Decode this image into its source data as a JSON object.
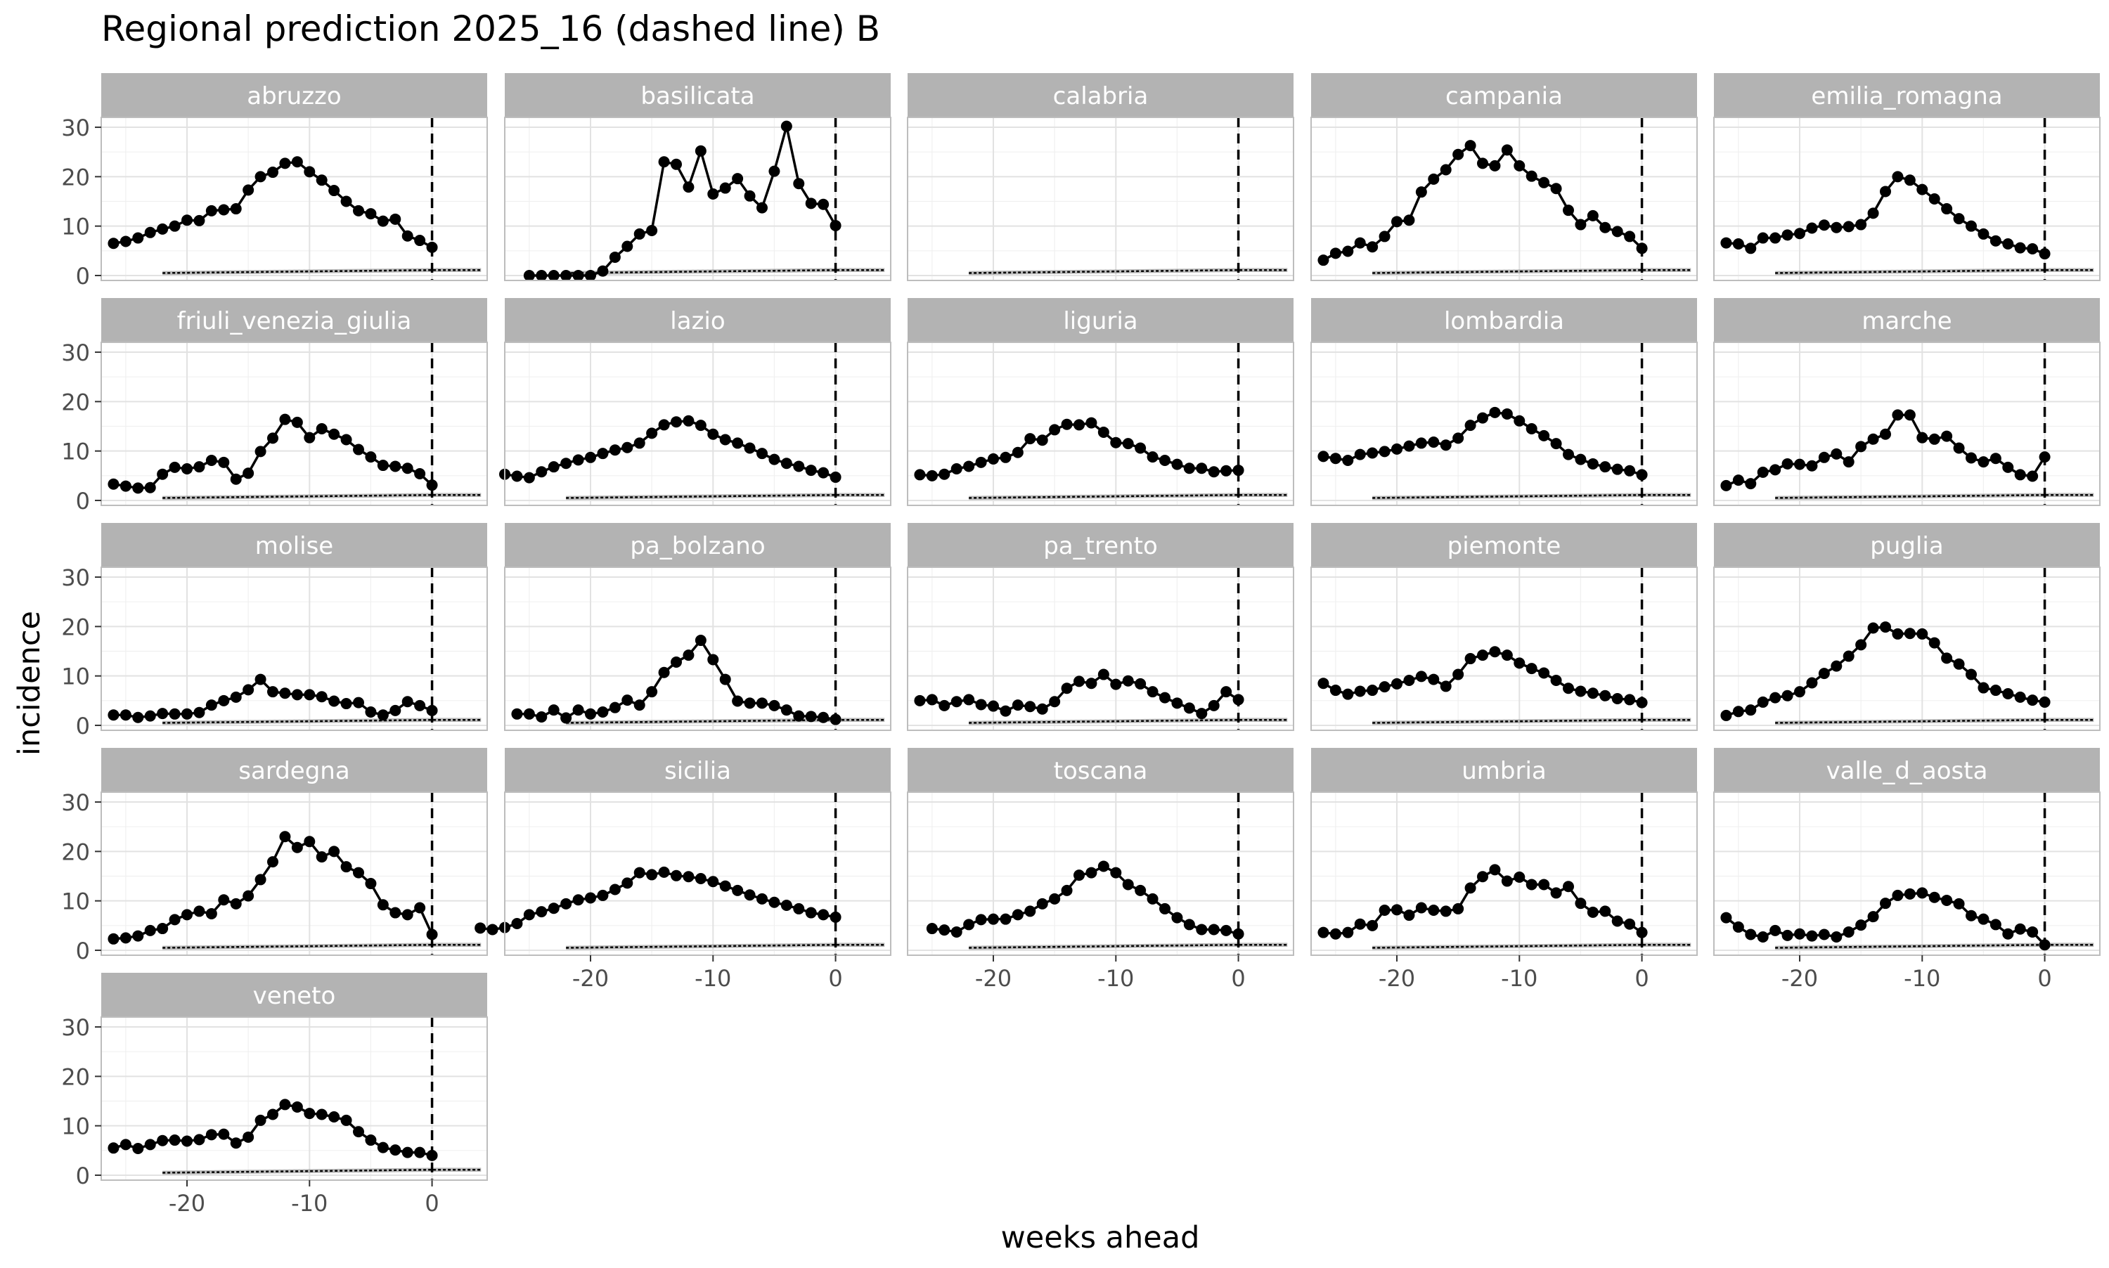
{
  "chart_data": {
    "type": "line",
    "title": "Regional prediction 2025_16 (dashed line) B",
    "xlabel": "weeks ahead",
    "ylabel": "incidence",
    "xlim": [
      -27,
      4.5
    ],
    "ylim": [
      -1,
      32
    ],
    "x_ticks": [
      -20,
      -10,
      0
    ],
    "y_ticks": [
      0,
      10,
      20,
      30
    ],
    "vline_x": 0,
    "grid": true,
    "facets": [
      {
        "name": "abruzzo",
        "observed": [
          6.5,
          6.9,
          7.6,
          8.7,
          9.4,
          10.0,
          11.2,
          11.1,
          13.1,
          13.3,
          13.5,
          17.3,
          20.0,
          20.9,
          22.7,
          23.0,
          21.0,
          19.3,
          17.2,
          15.0,
          13.1,
          12.5,
          11.0,
          11.4,
          8.0,
          7.1,
          5.7
        ]
      },
      {
        "name": "basilicata",
        "observed": [
          0.0,
          0.0,
          0.0,
          0.0,
          0.0,
          0.0,
          0.9,
          3.7,
          5.9,
          8.4,
          9.1,
          23.0,
          22.5,
          17.9,
          25.2,
          16.5,
          17.7,
          19.6,
          16.1,
          13.7,
          21.1,
          30.2,
          18.6,
          14.6,
          14.4,
          10.1
        ]
      },
      {
        "name": "calabria",
        "observed": []
      },
      {
        "name": "campania",
        "observed": [
          3.1,
          4.5,
          4.9,
          6.6,
          5.8,
          7.9,
          10.9,
          11.2,
          16.9,
          19.5,
          21.4,
          24.5,
          26.3,
          22.7,
          22.2,
          25.4,
          22.2,
          20.1,
          18.8,
          17.6,
          13.2,
          10.3,
          12.1,
          9.7,
          8.9,
          7.9,
          5.5
        ]
      },
      {
        "name": "emilia_romagna",
        "observed": [
          6.6,
          6.4,
          5.5,
          7.6,
          7.6,
          8.2,
          8.5,
          9.6,
          10.2,
          9.7,
          9.9,
          10.3,
          12.6,
          17.0,
          20.0,
          19.3,
          17.4,
          15.5,
          13.5,
          11.5,
          10.0,
          8.4,
          7.0,
          6.4,
          5.6,
          5.4,
          4.4
        ]
      },
      {
        "name": "friuli_venezia_giulia",
        "observed": [
          3.3,
          2.9,
          2.5,
          2.6,
          5.3,
          6.7,
          6.4,
          6.8,
          8.1,
          7.7,
          4.3,
          5.5,
          9.9,
          12.6,
          16.4,
          15.8,
          12.7,
          14.5,
          13.4,
          12.3,
          10.3,
          8.8,
          7.1,
          6.9,
          6.5,
          5.4,
          3.1
        ]
      },
      {
        "name": "lazio",
        "observed": [
          5.3,
          4.9,
          4.6,
          5.8,
          6.8,
          7.5,
          8.2,
          8.7,
          9.5,
          10.2,
          10.7,
          11.6,
          13.6,
          15.3,
          15.9,
          16.1,
          15.2,
          13.4,
          12.3,
          11.6,
          10.6,
          9.5,
          8.3,
          7.5,
          6.9,
          6.1,
          5.6,
          4.7
        ]
      },
      {
        "name": "liguria",
        "observed": [
          5.2,
          5.0,
          5.3,
          6.4,
          6.9,
          7.7,
          8.4,
          8.7,
          9.7,
          12.5,
          12.2,
          14.3,
          15.4,
          15.3,
          15.7,
          13.8,
          11.7,
          11.5,
          10.6,
          8.8,
          8.1,
          7.3,
          6.5,
          6.5,
          5.8,
          6.0,
          6.1
        ]
      },
      {
        "name": "lombardia",
        "observed": [
          8.9,
          8.5,
          8.1,
          9.3,
          9.6,
          9.9,
          10.4,
          11.0,
          11.6,
          11.8,
          11.2,
          12.6,
          15.2,
          16.7,
          17.8,
          17.5,
          16.1,
          14.5,
          13.1,
          11.5,
          9.3,
          8.3,
          7.4,
          6.8,
          6.3,
          6.0,
          5.2
        ]
      },
      {
        "name": "marche",
        "observed": [
          3.0,
          4.1,
          3.4,
          5.7,
          6.2,
          7.4,
          7.3,
          7.0,
          8.7,
          9.4,
          7.8,
          10.9,
          12.4,
          13.4,
          17.3,
          17.3,
          12.7,
          12.4,
          13.0,
          10.6,
          8.6,
          7.8,
          8.5,
          6.7,
          5.2,
          4.9,
          8.8
        ]
      },
      {
        "name": "molise",
        "observed": [
          2.1,
          2.1,
          1.6,
          1.9,
          2.4,
          2.3,
          2.3,
          2.6,
          4.1,
          5.0,
          5.7,
          7.2,
          9.3,
          6.8,
          6.5,
          6.2,
          6.2,
          5.8,
          4.9,
          4.4,
          4.6,
          2.7,
          2.1,
          3.0,
          4.8,
          4.0,
          3.0
        ]
      },
      {
        "name": "pa_bolzano",
        "observed": [
          2.3,
          2.3,
          1.7,
          3.1,
          1.5,
          3.1,
          2.3,
          2.7,
          3.6,
          5.1,
          4.1,
          6.8,
          10.7,
          12.8,
          14.2,
          17.2,
          13.3,
          9.3,
          4.9,
          4.5,
          4.5,
          4.0,
          3.1,
          1.9,
          1.8,
          1.6,
          1.2
        ]
      },
      {
        "name": "pa_trento",
        "observed": [
          5.0,
          5.2,
          4.0,
          4.8,
          5.2,
          4.2,
          3.9,
          2.9,
          4.1,
          3.8,
          3.3,
          4.8,
          7.5,
          8.9,
          8.5,
          10.3,
          8.3,
          9.0,
          8.4,
          6.8,
          5.6,
          4.5,
          3.5,
          2.4,
          4.0,
          6.8,
          5.2
        ]
      },
      {
        "name": "piemonte",
        "observed": [
          8.5,
          7.1,
          6.3,
          6.9,
          7.1,
          7.8,
          8.4,
          9.1,
          9.9,
          9.3,
          7.9,
          10.3,
          13.5,
          14.2,
          14.9,
          14.2,
          12.6,
          11.5,
          10.6,
          9.1,
          7.5,
          6.9,
          6.5,
          6.0,
          5.4,
          5.2,
          4.6
        ]
      },
      {
        "name": "puglia",
        "observed": [
          2.0,
          2.8,
          3.1,
          4.7,
          5.6,
          6.0,
          6.8,
          8.6,
          10.5,
          12.0,
          14.0,
          16.3,
          19.7,
          19.9,
          18.5,
          18.6,
          18.5,
          16.7,
          13.6,
          12.4,
          10.3,
          7.6,
          7.1,
          6.4,
          5.7,
          5.1,
          4.7
        ]
      },
      {
        "name": "sardegna",
        "observed": [
          2.3,
          2.5,
          2.9,
          4.0,
          4.4,
          6.2,
          7.2,
          7.9,
          7.4,
          10.2,
          9.4,
          11.0,
          14.3,
          17.9,
          23.0,
          20.8,
          22.0,
          18.9,
          20.0,
          16.9,
          15.7,
          13.5,
          9.2,
          7.6,
          7.2,
          8.6,
          3.2
        ]
      },
      {
        "name": "sicilia",
        "observed": [
          4.5,
          4.2,
          4.6,
          5.4,
          7.2,
          7.8,
          8.5,
          9.4,
          10.2,
          10.6,
          11.1,
          12.3,
          13.6,
          15.7,
          15.3,
          15.8,
          15.1,
          14.9,
          14.5,
          13.9,
          13.0,
          12.1,
          11.2,
          10.4,
          9.7,
          9.1,
          8.4,
          7.6,
          7.2,
          6.7
        ]
      },
      {
        "name": "toscana",
        "observed": [
          4.4,
          4.1,
          3.7,
          5.2,
          6.2,
          6.3,
          6.3,
          7.2,
          7.9,
          9.4,
          10.4,
          12.1,
          15.2,
          15.7,
          17.0,
          15.7,
          13.3,
          12.1,
          10.4,
          8.4,
          6.6,
          5.2,
          4.2,
          4.2,
          4.0,
          3.3
        ]
      },
      {
        "name": "umbria",
        "observed": [
          3.6,
          3.3,
          3.6,
          5.3,
          5.0,
          8.1,
          8.2,
          7.1,
          8.6,
          8.1,
          7.9,
          8.4,
          12.6,
          14.9,
          16.3,
          14.0,
          14.8,
          13.3,
          13.3,
          11.6,
          12.9,
          9.5,
          7.7,
          7.9,
          5.9,
          5.3,
          3.6
        ]
      },
      {
        "name": "valle_d_aosta",
        "observed": [
          6.6,
          4.7,
          3.2,
          2.7,
          4.0,
          3.0,
          3.3,
          2.9,
          3.2,
          2.7,
          3.7,
          5.1,
          6.8,
          9.5,
          11.1,
          11.4,
          11.6,
          10.7,
          10.1,
          9.4,
          7.0,
          6.3,
          5.2,
          3.3,
          4.3,
          3.7,
          1.1
        ]
      },
      {
        "name": "veneto",
        "observed": [
          5.5,
          6.2,
          5.4,
          6.2,
          7.0,
          7.1,
          6.9,
          7.2,
          8.2,
          8.3,
          6.5,
          7.7,
          11.1,
          12.3,
          14.3,
          13.8,
          12.5,
          12.3,
          11.8,
          11.1,
          8.8,
          7.1,
          5.6,
          5.1,
          4.6,
          4.6,
          4.0
        ]
      }
    ]
  }
}
